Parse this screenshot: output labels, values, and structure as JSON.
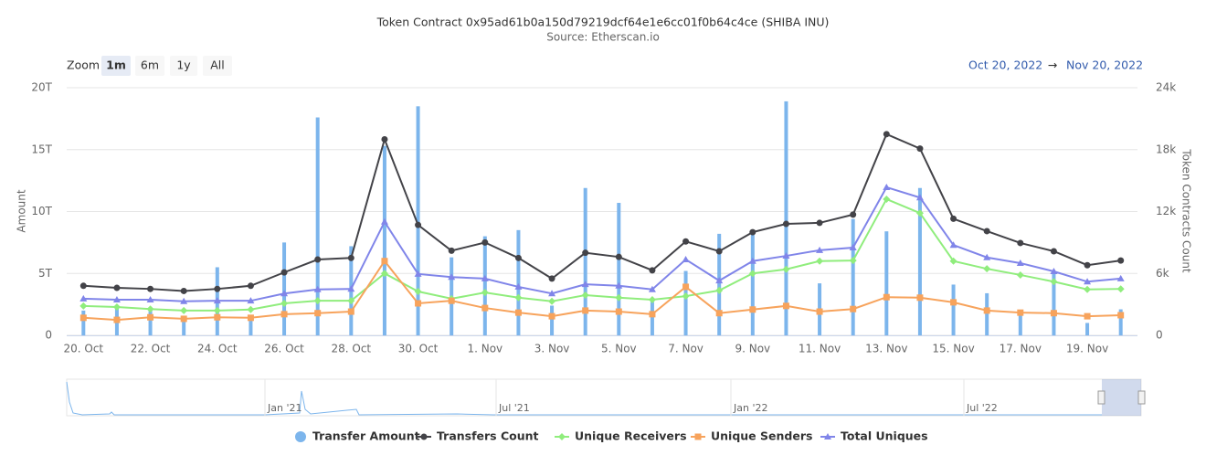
{
  "chart_data": {
    "type": "combo",
    "title": "Token Contract 0x95ad61b0a150d79219dcf64e1e6cc01f0b64c4ce (SHIBA INU)",
    "subtitle": "Source: Etherscan.io",
    "zoom": {
      "label": "Zoom",
      "buttons": [
        "1m",
        "6m",
        "1y",
        "All"
      ],
      "selected": 0
    },
    "range": {
      "from": "Oct 20, 2022",
      "arrow": "→",
      "to": "Nov 20, 2022"
    },
    "ylabel": "Amount",
    "y2label": "Token Contracts Count",
    "categories": [
      "20. Oct",
      null,
      "22. Oct",
      null,
      "24. Oct",
      null,
      "26. Oct",
      null,
      "28. Oct",
      null,
      "30. Oct",
      null,
      "1. Nov",
      null,
      "3. Nov",
      null,
      "5. Nov",
      null,
      "7. Nov",
      null,
      "9. Nov",
      null,
      "11. Nov",
      null,
      "13. Nov",
      null,
      "15. Nov",
      null,
      "17. Nov",
      null,
      "19. Nov",
      null
    ],
    "ylim": [
      0,
      20
    ],
    "yticks": [
      0,
      {
        "value": 5,
        "label": "5T"
      },
      {
        "value": 10,
        "label": "10T"
      },
      {
        "value": 15,
        "label": "15T"
      },
      {
        "value": 20,
        "label": "20T"
      }
    ],
    "y2lim": [
      0,
      24000
    ],
    "y2ticks": [
      0,
      {
        "value": 6000,
        "label": "6k"
      },
      {
        "value": 12000,
        "label": "12k"
      },
      {
        "value": 18000,
        "label": "18k"
      },
      {
        "value": 24000,
        "label": "24k"
      }
    ],
    "grid": true,
    "series": [
      {
        "name": "Transfer Amount",
        "type": "column",
        "color": "#7cb5ec",
        "values": [
          2,
          2.4,
          2,
          1.5,
          5.5,
          1.5,
          7.5,
          17.6,
          7.2,
          15.3,
          18.5,
          6.3,
          8,
          8.5,
          2.4,
          11.9,
          10.7,
          2.7,
          5.2,
          8.2,
          8.3,
          18.9,
          4.2,
          9.4,
          8.4,
          11.9,
          4.1,
          3.4,
          2,
          5,
          1,
          2.1
        ]
      },
      {
        "name": "Transfers Count",
        "type": "line",
        "marker": "circle",
        "axis": "y2",
        "color": "#434348",
        "values": [
          4800,
          4600,
          4500,
          4300,
          4500,
          4800,
          6100,
          7350,
          7500,
          19000,
          10700,
          8200,
          9000,
          7500,
          5500,
          8000,
          7600,
          6300,
          9100,
          8150,
          10000,
          10800,
          10900,
          11700,
          19500,
          18100,
          11300,
          10100,
          8950,
          8150,
          6800,
          7250
        ]
      },
      {
        "name": "Unique Receivers",
        "type": "line",
        "marker": "diamond",
        "axis": "y2",
        "color": "#90ed7d",
        "values": [
          2850,
          2750,
          2550,
          2400,
          2400,
          2500,
          3100,
          3350,
          3350,
          6000,
          4250,
          3550,
          4150,
          3650,
          3300,
          3900,
          3650,
          3450,
          3800,
          4350,
          6000,
          6400,
          7200,
          7250,
          13200,
          11850,
          7200,
          6450,
          5850,
          5200,
          4450,
          4500
        ]
      },
      {
        "name": "Unique Senders",
        "type": "line",
        "marker": "square",
        "axis": "y2",
        "color": "#f7a35c",
        "values": [
          1700,
          1500,
          1750,
          1600,
          1750,
          1700,
          2050,
          2150,
          2300,
          7200,
          3100,
          3350,
          2650,
          2200,
          1850,
          2400,
          2300,
          2050,
          4700,
          2150,
          2500,
          2850,
          2300,
          2550,
          3700,
          3650,
          3200,
          2400,
          2200,
          2150,
          1850,
          1950
        ]
      },
      {
        "name": "Total Uniques",
        "type": "line",
        "marker": "triangle",
        "axis": "y2",
        "color": "#8085e9",
        "values": [
          3550,
          3450,
          3450,
          3300,
          3350,
          3350,
          4050,
          4450,
          4500,
          11000,
          5950,
          5650,
          5500,
          4700,
          4050,
          4950,
          4800,
          4450,
          7350,
          5300,
          7200,
          7700,
          8250,
          8500,
          14350,
          13350,
          8750,
          7550,
          7000,
          6200,
          5200,
          5500
        ]
      }
    ],
    "navigator": {
      "labels": [
        "Jan '21",
        "Jul '21",
        "Jan '22",
        "Jul '22"
      ]
    }
  }
}
